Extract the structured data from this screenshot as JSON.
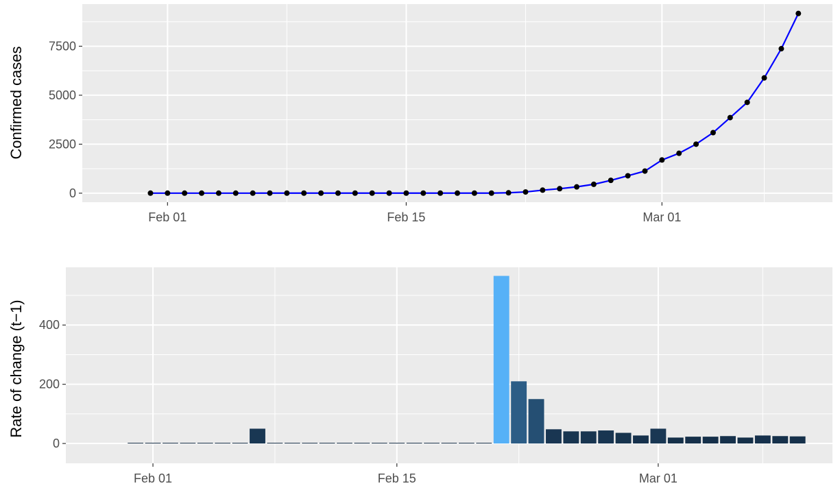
{
  "chart_data": [
    {
      "type": "line",
      "ylabel": "Confirmed cases",
      "xlabel": "",
      "x_tick_labels": [
        "Feb 01",
        "Feb 15",
        "Mar 01"
      ],
      "x_ticks": [
        "2020-02-01",
        "2020-02-15",
        "2020-03-01"
      ],
      "y_tick_labels": [
        "0",
        "2500",
        "5000",
        "7500"
      ],
      "y_ticks": [
        0,
        2500,
        5000,
        7500
      ],
      "xlim": [
        "2020-01-27",
        "2020-03-11"
      ],
      "ylim": [
        -460,
        9650
      ],
      "grid": true,
      "series": [
        {
          "color": "#0000ff",
          "marker_color": "#000000",
          "points": [
            {
              "x": "2020-01-31",
              "y": 2
            },
            {
              "x": "2020-02-01",
              "y": 2
            },
            {
              "x": "2020-02-02",
              "y": 2
            },
            {
              "x": "2020-02-03",
              "y": 2
            },
            {
              "x": "2020-02-04",
              "y": 2
            },
            {
              "x": "2020-02-05",
              "y": 2
            },
            {
              "x": "2020-02-06",
              "y": 2
            },
            {
              "x": "2020-02-07",
              "y": 3
            },
            {
              "x": "2020-02-08",
              "y": 3
            },
            {
              "x": "2020-02-09",
              "y": 3
            },
            {
              "x": "2020-02-10",
              "y": 3
            },
            {
              "x": "2020-02-11",
              "y": 3
            },
            {
              "x": "2020-02-12",
              "y": 3
            },
            {
              "x": "2020-02-13",
              "y": 3
            },
            {
              "x": "2020-02-14",
              "y": 3
            },
            {
              "x": "2020-02-15",
              "y": 3
            },
            {
              "x": "2020-02-16",
              "y": 3
            },
            {
              "x": "2020-02-17",
              "y": 3
            },
            {
              "x": "2020-02-18",
              "y": 3
            },
            {
              "x": "2020-02-19",
              "y": 3
            },
            {
              "x": "2020-02-20",
              "y": 3
            },
            {
              "x": "2020-02-21",
              "y": 20
            },
            {
              "x": "2020-02-22",
              "y": 62
            },
            {
              "x": "2020-02-23",
              "y": 155
            },
            {
              "x": "2020-02-24",
              "y": 229
            },
            {
              "x": "2020-02-25",
              "y": 322
            },
            {
              "x": "2020-02-26",
              "y": 453
            },
            {
              "x": "2020-02-27",
              "y": 655
            },
            {
              "x": "2020-02-28",
              "y": 888
            },
            {
              "x": "2020-02-29",
              "y": 1128
            },
            {
              "x": "2020-03-01",
              "y": 1694
            },
            {
              "x": "2020-03-02",
              "y": 2036
            },
            {
              "x": "2020-03-03",
              "y": 2502
            },
            {
              "x": "2020-03-04",
              "y": 3089
            },
            {
              "x": "2020-03-05",
              "y": 3858
            },
            {
              "x": "2020-03-06",
              "y": 4636
            },
            {
              "x": "2020-03-07",
              "y": 5883
            },
            {
              "x": "2020-03-08",
              "y": 7375
            },
            {
              "x": "2020-03-09",
              "y": 9172
            }
          ]
        }
      ]
    },
    {
      "type": "bar",
      "ylabel": "Rate of change (t−1)",
      "xlabel": "",
      "x_tick_labels": [
        "Feb 01",
        "Feb 15",
        "Mar 01"
      ],
      "x_ticks": [
        "2020-02-01",
        "2020-02-15",
        "2020-03-01"
      ],
      "y_tick_labels": [
        "0",
        "200",
        "400"
      ],
      "y_ticks": [
        0,
        200,
        400
      ],
      "xlim": [
        "2020-01-27",
        "2020-03-11"
      ],
      "ylim": [
        -67,
        595
      ],
      "grid": true,
      "fill_scale": {
        "low_color": "#132b43",
        "high_color": "#56b1f7",
        "low_value": 0,
        "high_value": 566
      },
      "bars": [
        {
          "x": "2020-01-31",
          "value": 0
        },
        {
          "x": "2020-02-01",
          "value": 0
        },
        {
          "x": "2020-02-02",
          "value": 0
        },
        {
          "x": "2020-02-03",
          "value": 0
        },
        {
          "x": "2020-02-04",
          "value": 0
        },
        {
          "x": "2020-02-05",
          "value": 0
        },
        {
          "x": "2020-02-06",
          "value": 0
        },
        {
          "x": "2020-02-07",
          "value": 50
        },
        {
          "x": "2020-02-08",
          "value": 0
        },
        {
          "x": "2020-02-09",
          "value": 0
        },
        {
          "x": "2020-02-10",
          "value": 0
        },
        {
          "x": "2020-02-11",
          "value": 0
        },
        {
          "x": "2020-02-12",
          "value": 0
        },
        {
          "x": "2020-02-13",
          "value": 0
        },
        {
          "x": "2020-02-14",
          "value": 0
        },
        {
          "x": "2020-02-15",
          "value": 0
        },
        {
          "x": "2020-02-16",
          "value": 0
        },
        {
          "x": "2020-02-17",
          "value": 0
        },
        {
          "x": "2020-02-18",
          "value": 0
        },
        {
          "x": "2020-02-19",
          "value": 0
        },
        {
          "x": "2020-02-20",
          "value": 0
        },
        {
          "x": "2020-02-21",
          "value": 566
        },
        {
          "x": "2020-02-22",
          "value": 210
        },
        {
          "x": "2020-02-23",
          "value": 150
        },
        {
          "x": "2020-02-24",
          "value": 48
        },
        {
          "x": "2020-02-25",
          "value": 41
        },
        {
          "x": "2020-02-26",
          "value": 41
        },
        {
          "x": "2020-02-27",
          "value": 44
        },
        {
          "x": "2020-02-28",
          "value": 36
        },
        {
          "x": "2020-02-29",
          "value": 27
        },
        {
          "x": "2020-03-01",
          "value": 50
        },
        {
          "x": "2020-03-02",
          "value": 20
        },
        {
          "x": "2020-03-03",
          "value": 23
        },
        {
          "x": "2020-03-04",
          "value": 23
        },
        {
          "x": "2020-03-05",
          "value": 25
        },
        {
          "x": "2020-03-06",
          "value": 20
        },
        {
          "x": "2020-03-07",
          "value": 27
        },
        {
          "x": "2020-03-08",
          "value": 25
        },
        {
          "x": "2020-03-09",
          "value": 24
        }
      ]
    }
  ]
}
